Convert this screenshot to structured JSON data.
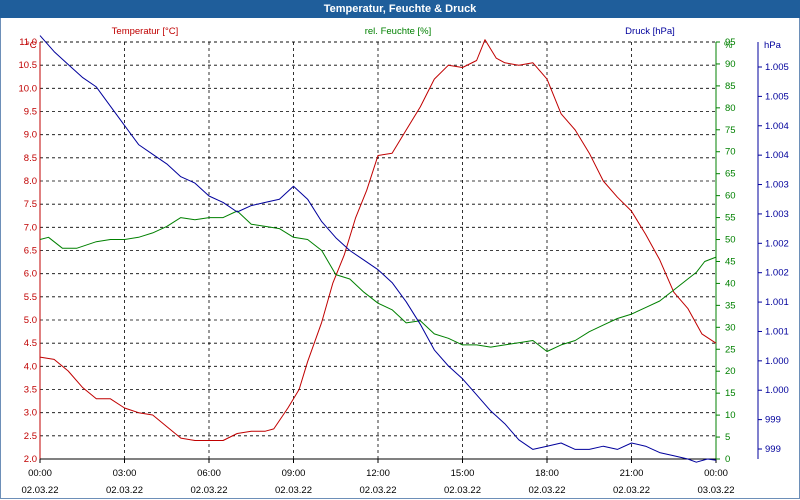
{
  "window": {
    "title": "Temperatur, Feuchte & Druck"
  },
  "colors": {
    "temperature": "#c00000",
    "humidity": "#008000",
    "pressure": "#00009c",
    "title_bar": "#1f5e9b",
    "grid": "#000000"
  },
  "chart_data": {
    "type": "line",
    "title": "Temperatur, Feuchte & Druck",
    "grid": true,
    "x": {
      "range_hours": [
        0,
        24
      ],
      "ticks": [
        {
          "time": "00:00",
          "date": "02.03.22"
        },
        {
          "time": "03:00",
          "date": "02.03.22"
        },
        {
          "time": "06:00",
          "date": "02.03.22"
        },
        {
          "time": "09:00",
          "date": "02.03.22"
        },
        {
          "time": "12:00",
          "date": "02.03.22"
        },
        {
          "time": "15:00",
          "date": "02.03.22"
        },
        {
          "time": "18:00",
          "date": "02.03.22"
        },
        {
          "time": "21:00",
          "date": "02.03.22"
        },
        {
          "time": "00:00",
          "date": "03.03.22"
        }
      ]
    },
    "axes": {
      "temperature": {
        "unit": "°C",
        "min": 2.0,
        "max": 11.0,
        "ticks": [
          "2.0",
          "2.5",
          "3.0",
          "3.5",
          "4.0",
          "4.5",
          "5.0",
          "5.5",
          "6.0",
          "6.5",
          "7.0",
          "7.5",
          "8.0",
          "8.5",
          "9.0",
          "9.5",
          "10.0",
          "10.5",
          "11.0"
        ]
      },
      "humidity": {
        "unit": "%",
        "min": 0,
        "max": 95,
        "ticks": [
          "0",
          "5",
          "10",
          "15",
          "20",
          "25",
          "30",
          "35",
          "40",
          "45",
          "50",
          "55",
          "60",
          "65",
          "70",
          "75",
          "80",
          "85",
          "90",
          "95"
        ]
      },
      "pressure": {
        "unit": "hPa",
        "min": 998.5,
        "max": 1005.0,
        "ticks": [
          "999",
          "999",
          "1.000",
          "1.000",
          "1.001",
          "1.001",
          "1.002",
          "1.002",
          "1.003",
          "1.003",
          "1.004",
          "1.004",
          "1.005",
          "1.005"
        ]
      }
    },
    "series": [
      {
        "name": "Temperatur [°C]",
        "axis": "temperature",
        "points": [
          [
            0,
            4.2
          ],
          [
            0.5,
            4.15
          ],
          [
            1,
            3.9
          ],
          [
            1.5,
            3.55
          ],
          [
            2,
            3.3
          ],
          [
            2.5,
            3.3
          ],
          [
            3,
            3.1
          ],
          [
            3.5,
            3.0
          ],
          [
            4,
            2.95
          ],
          [
            4.5,
            2.7
          ],
          [
            5,
            2.45
          ],
          [
            5.5,
            2.4
          ],
          [
            6,
            2.4
          ],
          [
            6.5,
            2.4
          ],
          [
            7,
            2.55
          ],
          [
            7.5,
            2.6
          ],
          [
            8,
            2.6
          ],
          [
            8.3,
            2.65
          ],
          [
            8.8,
            3.1
          ],
          [
            9.2,
            3.5
          ],
          [
            9.5,
            4.1
          ],
          [
            10,
            4.95
          ],
          [
            10.4,
            5.8
          ],
          [
            10.8,
            6.4
          ],
          [
            11.2,
            7.2
          ],
          [
            11.6,
            7.8
          ],
          [
            12,
            8.55
          ],
          [
            12.5,
            8.6
          ],
          [
            13,
            9.1
          ],
          [
            13.5,
            9.6
          ],
          [
            14,
            10.2
          ],
          [
            14.5,
            10.5
          ],
          [
            15,
            10.45
          ],
          [
            15.5,
            10.6
          ],
          [
            15.8,
            11.05
          ],
          [
            16.2,
            10.65
          ],
          [
            16.5,
            10.55
          ],
          [
            17,
            10.5
          ],
          [
            17.5,
            10.55
          ],
          [
            18,
            10.2
          ],
          [
            18.5,
            9.45
          ],
          [
            19,
            9.1
          ],
          [
            19.5,
            8.6
          ],
          [
            20,
            8.0
          ],
          [
            20.5,
            7.65
          ],
          [
            21,
            7.35
          ],
          [
            21.5,
            6.85
          ],
          [
            22,
            6.3
          ],
          [
            22.5,
            5.6
          ],
          [
            23,
            5.25
          ],
          [
            23.5,
            4.7
          ],
          [
            24,
            4.5
          ]
        ]
      },
      {
        "name": "rel. Feuchte [%]",
        "axis": "humidity",
        "points": [
          [
            0,
            50
          ],
          [
            0.3,
            50.5
          ],
          [
            0.8,
            48
          ],
          [
            1.3,
            48
          ],
          [
            2,
            49.5
          ],
          [
            2.5,
            50
          ],
          [
            3,
            50
          ],
          [
            3.5,
            50.5
          ],
          [
            4,
            51.5
          ],
          [
            4.5,
            53
          ],
          [
            5,
            55
          ],
          [
            5.5,
            54.5
          ],
          [
            6,
            55
          ],
          [
            6.5,
            55
          ],
          [
            7,
            56.5
          ],
          [
            7.5,
            53.5
          ],
          [
            8,
            53
          ],
          [
            8.5,
            52.5
          ],
          [
            9,
            50.5
          ],
          [
            9.5,
            50
          ],
          [
            10,
            47.5
          ],
          [
            10.5,
            42
          ],
          [
            11,
            41
          ],
          [
            11.5,
            38
          ],
          [
            12,
            35.5
          ],
          [
            12.5,
            34
          ],
          [
            13,
            31
          ],
          [
            13.5,
            31.5
          ],
          [
            14,
            28.5
          ],
          [
            14.5,
            27.5
          ],
          [
            15,
            26
          ],
          [
            15.5,
            26
          ],
          [
            16,
            25.5
          ],
          [
            16.5,
            26
          ],
          [
            17,
            26.5
          ],
          [
            17.5,
            27
          ],
          [
            18,
            24.5
          ],
          [
            18.5,
            26
          ],
          [
            19,
            27
          ],
          [
            19.5,
            29
          ],
          [
            20,
            30.5
          ],
          [
            20.5,
            32
          ],
          [
            21,
            33
          ],
          [
            21.5,
            34.5
          ],
          [
            22,
            36
          ],
          [
            22.5,
            38.5
          ],
          [
            23,
            41
          ],
          [
            23.3,
            42.5
          ],
          [
            23.6,
            45
          ],
          [
            24,
            46
          ]
        ]
      },
      {
        "name": "Druck [hPa]",
        "axis": "pressure",
        "points": [
          [
            0,
            1005.1
          ],
          [
            0.5,
            1004.85
          ],
          [
            1,
            1004.65
          ],
          [
            1.5,
            1004.45
          ],
          [
            2,
            1004.3
          ],
          [
            2.5,
            1004.0
          ],
          [
            3,
            1003.7
          ],
          [
            3.5,
            1003.4
          ],
          [
            4,
            1003.25
          ],
          [
            4.5,
            1003.1
          ],
          [
            5,
            1002.9
          ],
          [
            5.5,
            1002.8
          ],
          [
            6,
            1002.6
          ],
          [
            6.5,
            1002.5
          ],
          [
            7,
            1002.35
          ],
          [
            7.5,
            1002.45
          ],
          [
            8,
            1002.5
          ],
          [
            8.5,
            1002.55
          ],
          [
            9,
            1002.75
          ],
          [
            9.5,
            1002.55
          ],
          [
            10,
            1002.2
          ],
          [
            10.5,
            1001.95
          ],
          [
            11,
            1001.75
          ],
          [
            11.5,
            1001.6
          ],
          [
            12,
            1001.45
          ],
          [
            12.5,
            1001.25
          ],
          [
            13,
            1000.95
          ],
          [
            13.5,
            1000.6
          ],
          [
            14,
            1000.2
          ],
          [
            14.5,
            999.95
          ],
          [
            15,
            999.75
          ],
          [
            15.5,
            999.5
          ],
          [
            16,
            999.25
          ],
          [
            16.5,
            999.05
          ],
          [
            17,
            998.8
          ],
          [
            17.5,
            998.65
          ],
          [
            18,
            998.7
          ],
          [
            18.5,
            998.75
          ],
          [
            19,
            998.65
          ],
          [
            19.5,
            998.65
          ],
          [
            20,
            998.7
          ],
          [
            20.5,
            998.65
          ],
          [
            21,
            998.75
          ],
          [
            21.5,
            998.7
          ],
          [
            22,
            998.6
          ],
          [
            22.5,
            998.55
          ],
          [
            23,
            998.5
          ],
          [
            23.3,
            998.45
          ],
          [
            23.7,
            998.5
          ],
          [
            24,
            998.48
          ]
        ]
      }
    ],
    "legend": [
      {
        "label": "Temperatur [°C]",
        "axis": "temperature"
      },
      {
        "label": "rel. Feuchte [%]",
        "axis": "humidity"
      },
      {
        "label": "Druck [hPa]",
        "axis": "pressure"
      }
    ]
  }
}
